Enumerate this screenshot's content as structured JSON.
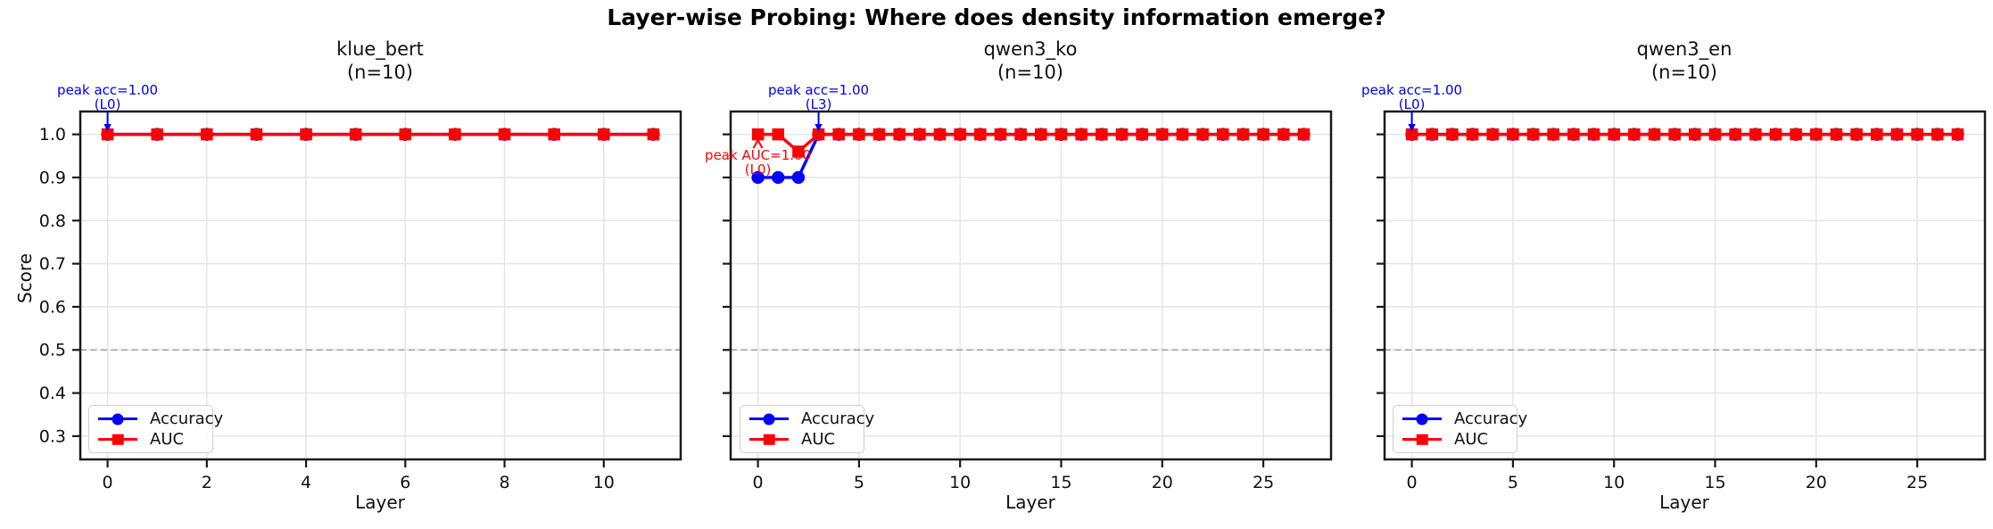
{
  "title": "Layer-wise Probing: Where does density information emerge?",
  "ylabel": "Score",
  "colors": {
    "accuracy": "#0000ff",
    "auc": "#ff0000",
    "annotation_acc": "#0000ee",
    "annotation_auc": "#ff0000",
    "chance_line": "#a8a8a8",
    "grid": "#e4e4e4",
    "axes": "#1a1a1a"
  },
  "chart_data": [
    {
      "type": "line",
      "title_line1": "klue_bert",
      "title_line2": "(n=10)",
      "xlabel": "Layer",
      "ylabel": "Score",
      "x": [
        0,
        1,
        2,
        3,
        4,
        5,
        6,
        7,
        8,
        9,
        10,
        11
      ],
      "xticks": [
        0,
        2,
        4,
        6,
        8,
        10
      ],
      "yticks": [
        0.3,
        0.4,
        0.5,
        0.6,
        0.7,
        0.8,
        0.9,
        1.0
      ],
      "xlim": [
        -0.55,
        11.55
      ],
      "ylim": [
        0.246,
        1.053
      ],
      "grid": true,
      "legend_position": "lower left",
      "show_ytick_labels": true,
      "chance_line": 0.5,
      "series": [
        {
          "name": "Accuracy",
          "color": "#0000ff",
          "marker": "circle",
          "values": [
            1.0,
            1.0,
            1.0,
            1.0,
            1.0,
            1.0,
            1.0,
            1.0,
            1.0,
            1.0,
            1.0,
            1.0
          ]
        },
        {
          "name": "AUC",
          "color": "#ff0000",
          "marker": "square",
          "values": [
            1.0,
            1.0,
            1.0,
            1.0,
            1.0,
            1.0,
            1.0,
            1.0,
            1.0,
            1.0,
            1.0,
            1.0
          ]
        }
      ],
      "annotations": [
        {
          "text_line1": "peak acc=1.00",
          "text_line2": "(L0)",
          "layer": 0,
          "color": "#0000ee",
          "placement": "above"
        }
      ]
    },
    {
      "type": "line",
      "title_line1": "qwen3_ko",
      "title_line2": "(n=10)",
      "xlabel": "Layer",
      "ylabel": "Score",
      "x": [
        0,
        1,
        2,
        3,
        4,
        5,
        6,
        7,
        8,
        9,
        10,
        11,
        12,
        13,
        14,
        15,
        16,
        17,
        18,
        19,
        20,
        21,
        22,
        23,
        24,
        25,
        26,
        27
      ],
      "xticks": [
        0,
        5,
        10,
        15,
        20,
        25
      ],
      "yticks": [
        0.3,
        0.4,
        0.5,
        0.6,
        0.7,
        0.8,
        0.9,
        1.0
      ],
      "xlim": [
        -1.35,
        28.35
      ],
      "ylim": [
        0.246,
        1.053
      ],
      "grid": true,
      "legend_position": "lower left",
      "show_ytick_labels": false,
      "chance_line": 0.5,
      "series": [
        {
          "name": "Accuracy",
          "color": "#0000ff",
          "marker": "circle",
          "values": [
            0.9,
            0.9,
            0.9,
            1.0,
            1.0,
            1.0,
            1.0,
            1.0,
            1.0,
            1.0,
            1.0,
            1.0,
            1.0,
            1.0,
            1.0,
            1.0,
            1.0,
            1.0,
            1.0,
            1.0,
            1.0,
            1.0,
            1.0,
            1.0,
            1.0,
            1.0,
            1.0,
            1.0
          ]
        },
        {
          "name": "AUC",
          "color": "#ff0000",
          "marker": "square",
          "values": [
            1.0,
            1.0,
            0.96,
            1.0,
            1.0,
            1.0,
            1.0,
            1.0,
            1.0,
            1.0,
            1.0,
            1.0,
            1.0,
            1.0,
            1.0,
            1.0,
            1.0,
            1.0,
            1.0,
            1.0,
            1.0,
            1.0,
            1.0,
            1.0,
            1.0,
            1.0,
            1.0,
            1.0
          ]
        }
      ],
      "annotations": [
        {
          "text_line1": "peak acc=1.00",
          "text_line2": "(L3)",
          "layer": 3,
          "color": "#0000ee",
          "placement": "above"
        },
        {
          "text_line1": "peak AUC=1.00",
          "text_line2": "(L0)",
          "layer": 0,
          "color": "#ff0000",
          "placement": "below"
        }
      ]
    },
    {
      "type": "line",
      "title_line1": "qwen3_en",
      "title_line2": "(n=10)",
      "xlabel": "Layer",
      "ylabel": "Score",
      "x": [
        0,
        1,
        2,
        3,
        4,
        5,
        6,
        7,
        8,
        9,
        10,
        11,
        12,
        13,
        14,
        15,
        16,
        17,
        18,
        19,
        20,
        21,
        22,
        23,
        24,
        25,
        26,
        27
      ],
      "xticks": [
        0,
        5,
        10,
        15,
        20,
        25
      ],
      "yticks": [
        0.3,
        0.4,
        0.5,
        0.6,
        0.7,
        0.8,
        0.9,
        1.0
      ],
      "xlim": [
        -1.35,
        28.35
      ],
      "ylim": [
        0.246,
        1.053
      ],
      "grid": true,
      "legend_position": "lower left",
      "show_ytick_labels": false,
      "chance_line": 0.5,
      "series": [
        {
          "name": "Accuracy",
          "color": "#0000ff",
          "marker": "circle",
          "values": [
            1.0,
            1.0,
            1.0,
            1.0,
            1.0,
            1.0,
            1.0,
            1.0,
            1.0,
            1.0,
            1.0,
            1.0,
            1.0,
            1.0,
            1.0,
            1.0,
            1.0,
            1.0,
            1.0,
            1.0,
            1.0,
            1.0,
            1.0,
            1.0,
            1.0,
            1.0,
            1.0,
            1.0
          ]
        },
        {
          "name": "AUC",
          "color": "#ff0000",
          "marker": "square",
          "values": [
            1.0,
            1.0,
            1.0,
            1.0,
            1.0,
            1.0,
            1.0,
            1.0,
            1.0,
            1.0,
            1.0,
            1.0,
            1.0,
            1.0,
            1.0,
            1.0,
            1.0,
            1.0,
            1.0,
            1.0,
            1.0,
            1.0,
            1.0,
            1.0,
            1.0,
            1.0,
            1.0,
            1.0
          ]
        }
      ],
      "annotations": [
        {
          "text_line1": "peak acc=1.00",
          "text_line2": "(L0)",
          "layer": 0,
          "color": "#0000ee",
          "placement": "above"
        }
      ]
    }
  ]
}
